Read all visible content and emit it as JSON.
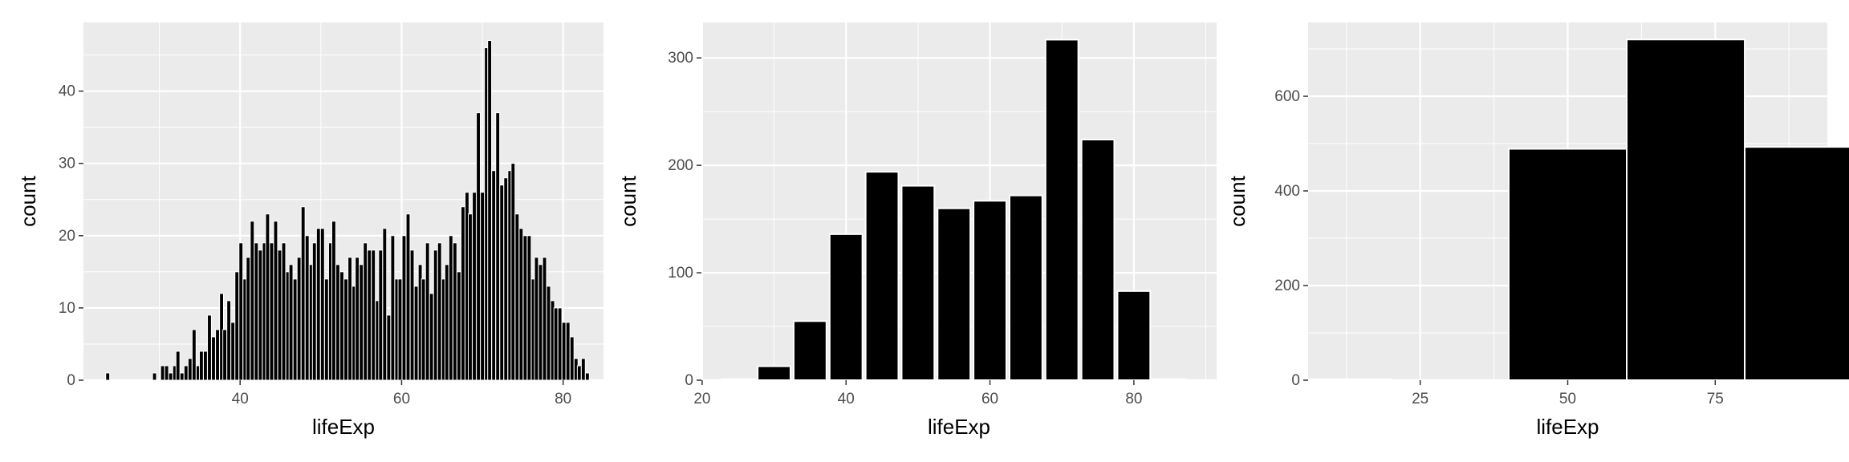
{
  "chart_data": [
    {
      "type": "histogram",
      "xlabel": "lifeExp",
      "ylabel": "count",
      "xlim": [
        20.6,
        85.0
      ],
      "ylim": [
        0,
        49.5
      ],
      "xticks": [
        40,
        60,
        80
      ],
      "yticks": [
        0,
        10,
        20,
        30,
        40
      ],
      "grid": true,
      "bar_fill": "#000000",
      "bar_outline": "#ffffff",
      "bins": [
        {
          "x": 23.6,
          "count": 1
        },
        {
          "x": 29.4,
          "count": 1
        },
        {
          "x": 30.4,
          "count": 2
        },
        {
          "x": 30.9,
          "count": 2
        },
        {
          "x": 31.4,
          "count": 1
        },
        {
          "x": 31.9,
          "count": 2
        },
        {
          "x": 32.3,
          "count": 4
        },
        {
          "x": 32.8,
          "count": 1
        },
        {
          "x": 33.3,
          "count": 2
        },
        {
          "x": 33.8,
          "count": 3
        },
        {
          "x": 34.3,
          "count": 7
        },
        {
          "x": 34.8,
          "count": 2
        },
        {
          "x": 35.2,
          "count": 4
        },
        {
          "x": 35.7,
          "count": 4
        },
        {
          "x": 36.2,
          "count": 9
        },
        {
          "x": 36.7,
          "count": 6
        },
        {
          "x": 37.2,
          "count": 7
        },
        {
          "x": 37.7,
          "count": 12
        },
        {
          "x": 38.1,
          "count": 7
        },
        {
          "x": 38.6,
          "count": 11
        },
        {
          "x": 39.1,
          "count": 8
        },
        {
          "x": 39.6,
          "count": 15
        },
        {
          "x": 40.1,
          "count": 19
        },
        {
          "x": 40.6,
          "count": 14
        },
        {
          "x": 41.0,
          "count": 17
        },
        {
          "x": 41.5,
          "count": 22
        },
        {
          "x": 42.0,
          "count": 19
        },
        {
          "x": 42.5,
          "count": 18
        },
        {
          "x": 43.0,
          "count": 19
        },
        {
          "x": 43.4,
          "count": 23
        },
        {
          "x": 43.9,
          "count": 19
        },
        {
          "x": 44.4,
          "count": 22
        },
        {
          "x": 44.9,
          "count": 18
        },
        {
          "x": 45.4,
          "count": 19
        },
        {
          "x": 45.9,
          "count": 15
        },
        {
          "x": 46.3,
          "count": 16
        },
        {
          "x": 46.8,
          "count": 14
        },
        {
          "x": 47.3,
          "count": 17
        },
        {
          "x": 47.8,
          "count": 24
        },
        {
          "x": 48.3,
          "count": 20
        },
        {
          "x": 48.8,
          "count": 16
        },
        {
          "x": 49.2,
          "count": 19
        },
        {
          "x": 49.7,
          "count": 21
        },
        {
          "x": 50.2,
          "count": 21
        },
        {
          "x": 50.7,
          "count": 14
        },
        {
          "x": 51.2,
          "count": 19
        },
        {
          "x": 51.6,
          "count": 22
        },
        {
          "x": 52.1,
          "count": 16
        },
        {
          "x": 52.6,
          "count": 15
        },
        {
          "x": 53.1,
          "count": 14
        },
        {
          "x": 53.6,
          "count": 17
        },
        {
          "x": 54.1,
          "count": 13
        },
        {
          "x": 54.5,
          "count": 17
        },
        {
          "x": 55.0,
          "count": 16
        },
        {
          "x": 55.5,
          "count": 19
        },
        {
          "x": 56.0,
          "count": 18
        },
        {
          "x": 56.5,
          "count": 18
        },
        {
          "x": 57.0,
          "count": 11
        },
        {
          "x": 57.4,
          "count": 18
        },
        {
          "x": 57.9,
          "count": 21
        },
        {
          "x": 58.4,
          "count": 9
        },
        {
          "x": 58.9,
          "count": 20
        },
        {
          "x": 59.4,
          "count": 14
        },
        {
          "x": 59.8,
          "count": 14
        },
        {
          "x": 60.3,
          "count": 20
        },
        {
          "x": 60.8,
          "count": 23
        },
        {
          "x": 61.3,
          "count": 18
        },
        {
          "x": 61.8,
          "count": 13
        },
        {
          "x": 62.3,
          "count": 16
        },
        {
          "x": 62.7,
          "count": 14
        },
        {
          "x": 63.2,
          "count": 19
        },
        {
          "x": 63.7,
          "count": 12
        },
        {
          "x": 64.2,
          "count": 18
        },
        {
          "x": 64.7,
          "count": 19
        },
        {
          "x": 65.2,
          "count": 14
        },
        {
          "x": 65.6,
          "count": 16
        },
        {
          "x": 66.1,
          "count": 20
        },
        {
          "x": 66.6,
          "count": 19
        },
        {
          "x": 67.1,
          "count": 15
        },
        {
          "x": 67.6,
          "count": 24
        },
        {
          "x": 68.1,
          "count": 26
        },
        {
          "x": 68.5,
          "count": 23
        },
        {
          "x": 69.0,
          "count": 26
        },
        {
          "x": 69.5,
          "count": 37
        },
        {
          "x": 70.0,
          "count": 26
        },
        {
          "x": 70.5,
          "count": 46
        },
        {
          "x": 70.9,
          "count": 47
        },
        {
          "x": 71.4,
          "count": 29
        },
        {
          "x": 71.9,
          "count": 37
        },
        {
          "x": 72.4,
          "count": 27
        },
        {
          "x": 72.9,
          "count": 28
        },
        {
          "x": 73.4,
          "count": 29
        },
        {
          "x": 73.8,
          "count": 30
        },
        {
          "x": 74.3,
          "count": 23
        },
        {
          "x": 74.8,
          "count": 21
        },
        {
          "x": 75.3,
          "count": 20
        },
        {
          "x": 75.8,
          "count": 20
        },
        {
          "x": 76.3,
          "count": 14
        },
        {
          "x": 76.7,
          "count": 17
        },
        {
          "x": 77.2,
          "count": 16
        },
        {
          "x": 77.7,
          "count": 17
        },
        {
          "x": 78.2,
          "count": 13
        },
        {
          "x": 78.7,
          "count": 11
        },
        {
          "x": 79.1,
          "count": 10
        },
        {
          "x": 79.6,
          "count": 10
        },
        {
          "x": 80.1,
          "count": 8
        },
        {
          "x": 80.6,
          "count": 8
        },
        {
          "x": 81.1,
          "count": 6
        },
        {
          "x": 81.6,
          "count": 3
        },
        {
          "x": 82.0,
          "count": 2
        },
        {
          "x": 82.5,
          "count": 3
        },
        {
          "x": 83.0,
          "count": 1
        }
      ]
    },
    {
      "type": "histogram",
      "xlabel": "lifeExp",
      "ylabel": "count",
      "xlim": [
        19.9,
        91.5
      ],
      "ylim": [
        0,
        333
      ],
      "xticks": [
        20,
        40,
        60,
        80
      ],
      "yticks": [
        0,
        100,
        200,
        300
      ],
      "grid": true,
      "bar_fill": "#000000",
      "bar_outline": "#ffffff",
      "bins": [
        {
          "x": 25,
          "count": 1
        },
        {
          "x": 30,
          "count": 13
        },
        {
          "x": 35,
          "count": 55
        },
        {
          "x": 40,
          "count": 136
        },
        {
          "x": 45,
          "count": 194
        },
        {
          "x": 50,
          "count": 181
        },
        {
          "x": 55,
          "count": 160
        },
        {
          "x": 60,
          "count": 167
        },
        {
          "x": 65,
          "count": 172
        },
        {
          "x": 70,
          "count": 317
        },
        {
          "x": 75,
          "count": 224
        },
        {
          "x": 80,
          "count": 83
        },
        {
          "x": 85,
          "count": 1
        }
      ]
    },
    {
      "type": "histogram",
      "xlabel": "lifeExp",
      "ylabel": "count",
      "xlim": [
        6,
        94
      ],
      "ylim": [
        0,
        756
      ],
      "xticks": [
        25,
        50,
        75
      ],
      "yticks": [
        0,
        200,
        400,
        600
      ],
      "grid": true,
      "bar_fill": "#000000",
      "bar_outline": "#ffffff",
      "bins": [
        {
          "x": 10,
          "count": 2
        },
        {
          "x": 30,
          "count": 0
        },
        {
          "x": 50,
          "count": 489
        },
        {
          "x": 70,
          "count": 720
        },
        {
          "x": 90,
          "count": 493
        }
      ],
      "binwidth": 20
    }
  ]
}
